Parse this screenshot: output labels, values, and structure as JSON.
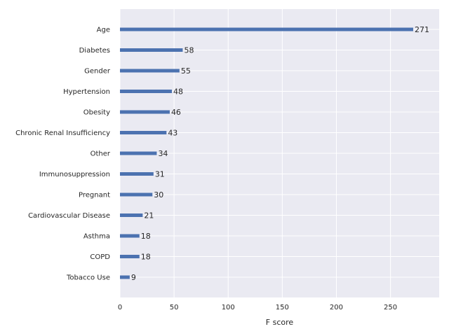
{
  "chart_data": {
    "type": "bar",
    "orientation": "horizontal",
    "title": "",
    "xlabel": "F score",
    "ylabel": "",
    "xlim": [
      0,
      295
    ],
    "xticks": [
      0,
      50,
      100,
      150,
      200,
      250
    ],
    "grid": true,
    "categories": [
      "Age",
      "Diabetes",
      "Gender",
      "Hypertension",
      "Obesity",
      "Chronic Renal Insufficiency",
      "Other",
      "Immunosuppression",
      "Pregnant",
      "Cardiovascular Disease",
      "Asthma",
      "COPD",
      "Tobacco Use"
    ],
    "values": [
      271,
      58,
      55,
      48,
      46,
      43,
      34,
      31,
      30,
      21,
      18,
      18,
      9
    ],
    "colors": {
      "bar": "#4c72b0",
      "plot_background": "#eaeaf2",
      "grid": "#ffffff",
      "text": "#262626"
    }
  }
}
